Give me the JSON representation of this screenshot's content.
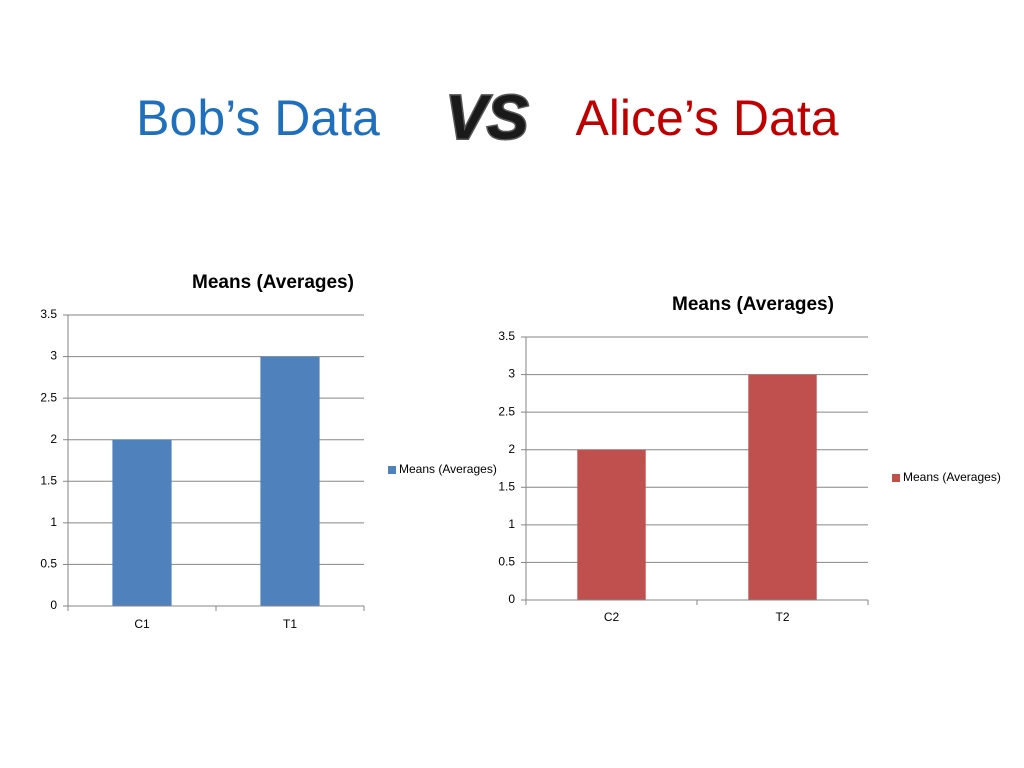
{
  "slide": {
    "left_title": "Bob’s Data",
    "vs": "VS",
    "right_title": "Alice’s Data"
  },
  "chart_data": [
    {
      "type": "bar",
      "title": "Means (Averages)",
      "categories": [
        "C1",
        "T1"
      ],
      "series": [
        {
          "name": "Means (Averages)",
          "color": "#4f81bd",
          "values": [
            2,
            3
          ]
        }
      ],
      "ylim": [
        0,
        3.5
      ],
      "yticks": [
        0,
        0.5,
        1,
        1.5,
        2,
        2.5,
        3,
        3.5
      ],
      "grid": true,
      "legend": "right"
    },
    {
      "type": "bar",
      "title": "Means (Averages)",
      "categories": [
        "C2",
        "T2"
      ],
      "series": [
        {
          "name": "Means (Averages)",
          "color": "#c0504d",
          "values": [
            2,
            3
          ]
        }
      ],
      "ylim": [
        0,
        3.5
      ],
      "yticks": [
        0,
        0.5,
        1,
        1.5,
        2,
        2.5,
        3,
        3.5
      ],
      "grid": true,
      "legend": "right"
    }
  ]
}
